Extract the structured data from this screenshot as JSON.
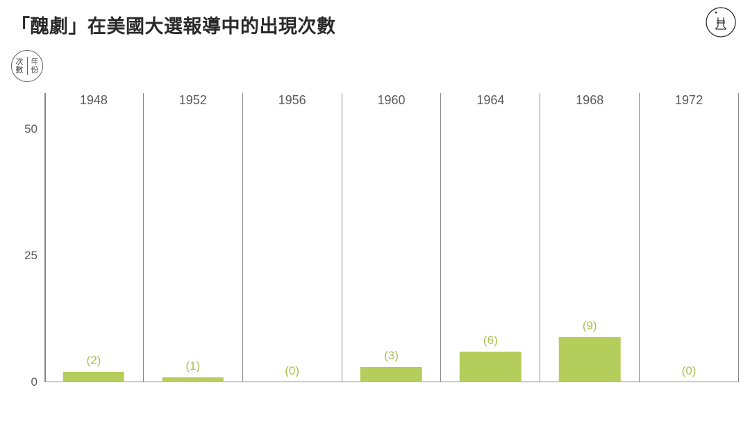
{
  "title": "「醜劇」在美國大選報導中的出現次數",
  "axis_legend": {
    "left_top": "次",
    "left_bot": "數",
    "right_top": "年",
    "right_bot": "份"
  },
  "chart": {
    "type": "bar",
    "ylim": [
      0,
      55
    ],
    "yticks": [
      {
        "value": 0,
        "label": "0"
      },
      {
        "value": 25,
        "label": "25"
      },
      {
        "value": 50,
        "label": "50"
      }
    ],
    "categories": [
      "1948",
      "1952",
      "1956",
      "1960",
      "1964",
      "1968",
      "1972"
    ],
    "values": [
      2,
      1,
      0,
      3,
      6,
      9,
      0
    ],
    "value_labels": [
      "(2)",
      "(1)",
      "(0)",
      "(3)",
      "(6)",
      "(9)",
      "(0)"
    ],
    "bar_color": "#b5cd5b",
    "label_color": "#a9c14f",
    "bar_width_ratio": 0.62,
    "grid_color": "#888888",
    "background_color": "#ffffff",
    "tick_text_color": "#5a5a5a",
    "title_color": "#2a2a2a",
    "axis_fontsize": 17,
    "category_fontsize": 18,
    "title_fontsize": 27
  },
  "logo": {
    "stroke": "#2a2a2a"
  }
}
